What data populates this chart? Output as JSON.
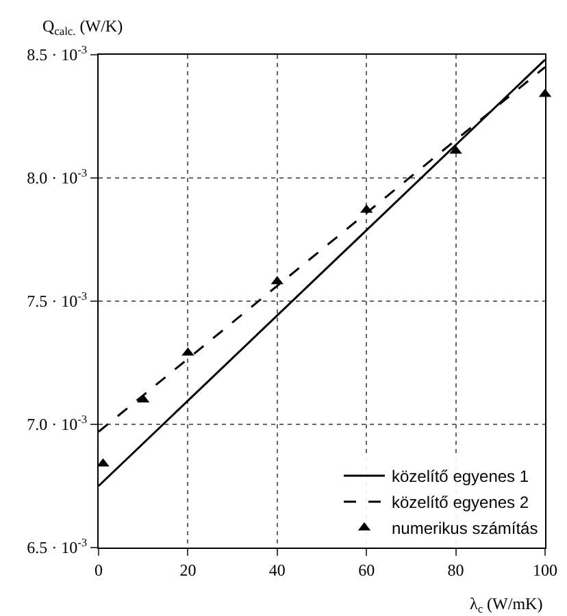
{
  "chart_data": {
    "type": "line",
    "ylabel": "Q$_{calc.}$ (W/K)",
    "xlabel": "λ$_{c}$ (W/mK)",
    "xlim": [
      0,
      100
    ],
    "xticks": [
      0,
      20,
      40,
      60,
      80,
      100
    ],
    "ylim": [
      0.0065,
      0.0085
    ],
    "yticks": [
      {
        "value": 0.0065,
        "label": "6.5 · 10$^{-3}$"
      },
      {
        "value": 0.007,
        "label": "7.0 · 10$^{-3}$"
      },
      {
        "value": 0.0075,
        "label": "7.5 · 10$^{-3}$"
      },
      {
        "value": 0.008,
        "label": "8.0 · 10$^{-3}$"
      },
      {
        "value": 0.0085,
        "label": "8.5 · 10$^{-3}$"
      }
    ],
    "grid": true,
    "legend": "bottom right",
    "series": [
      {
        "name": "közelítő egyenes 1",
        "line_style": "solid",
        "color": "#000000",
        "x": [
          0,
          100
        ],
        "values": [
          0.00675,
          0.00848
        ]
      },
      {
        "name": "közelítő egyenes 2",
        "line_style": "dashed",
        "color": "#000000",
        "x": [
          0,
          100
        ],
        "values": [
          0.00697,
          0.00845
        ]
      },
      {
        "name": "numerikus számítás",
        "type": "scatter",
        "marker": "triangle",
        "color": "#000000",
        "x": [
          1,
          10,
          20,
          40,
          60,
          80,
          100
        ],
        "values": [
          0.00684,
          0.0071,
          0.00729,
          0.00758,
          0.00787,
          0.00811,
          0.00834
        ]
      }
    ]
  }
}
